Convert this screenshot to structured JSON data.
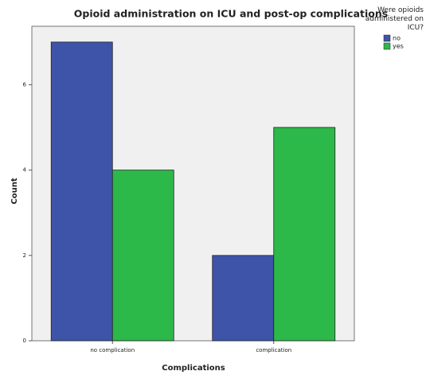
{
  "chart_data": {
    "type": "bar",
    "title": "Opioid administration on ICU and post-op complications",
    "x_label": "Complications",
    "y_label": "Count",
    "legend_title": "Were opioids administered on ICU?",
    "categories": [
      "no complication",
      "complication"
    ],
    "series": [
      {
        "name": "no",
        "color": "#3e54a8",
        "values": [
          7,
          2
        ]
      },
      {
        "name": "yes",
        "color": "#2db84a",
        "values": [
          4,
          5
        ]
      }
    ],
    "ylim": [
      0,
      7.37
    ],
    "yticks": [
      0,
      2,
      4,
      6
    ],
    "grid": false,
    "legend": "right"
  }
}
